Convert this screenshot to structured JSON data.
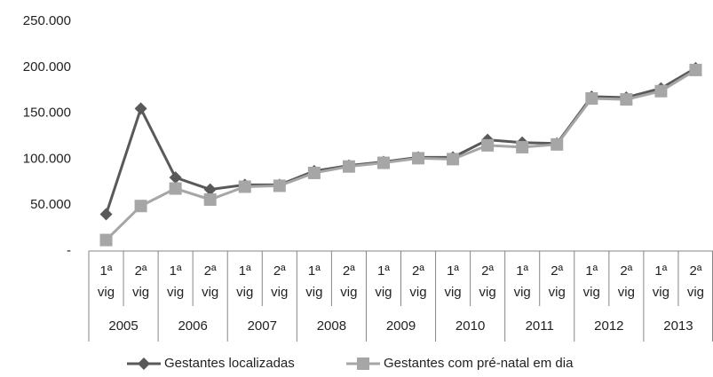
{
  "chart_data": {
    "type": "line",
    "categories": [
      "1ª vig",
      "2ª vig",
      "1ª vig",
      "2ª vig",
      "1ª vig",
      "2ª vig",
      "1ª vig",
      "2ª vig",
      "1ª vig",
      "2ª vig",
      "1ª vig",
      "2ª vig",
      "1ª vig",
      "2ª vig",
      "1ª vig",
      "2ª vig",
      "1ª vig",
      "2ª vig"
    ],
    "groups": [
      "2005",
      "2006",
      "2007",
      "2008",
      "2009",
      "2010",
      "2011",
      "2012",
      "2013"
    ],
    "series": [
      {
        "name": "Gestantes localizadas",
        "color": "#595959",
        "marker": "diamond",
        "values": [
          40000,
          155000,
          80000,
          67000,
          72000,
          72000,
          87000,
          93000,
          97000,
          102000,
          102000,
          121000,
          118000,
          117000,
          168000,
          167000,
          177000,
          199000
        ]
      },
      {
        "name": "Gestantes com pré-natal em dia",
        "color": "#a6a6a6",
        "marker": "square",
        "values": [
          12000,
          49000,
          68000,
          56000,
          70000,
          71000,
          85000,
          92000,
          96000,
          101000,
          100000,
          115000,
          113000,
          116000,
          166000,
          165000,
          174000,
          197000
        ]
      }
    ],
    "ylim": [
      0,
      250000
    ],
    "yticks": [
      {
        "value": 0,
        "label": "-"
      },
      {
        "value": 50000,
        "label": "50.000"
      },
      {
        "value": 100000,
        "label": "100.000"
      },
      {
        "value": 150000,
        "label": "150.000"
      },
      {
        "value": 200000,
        "label": "200.000"
      },
      {
        "value": 250000,
        "label": "250.000"
      }
    ],
    "grid": false,
    "legend": "bottom"
  }
}
